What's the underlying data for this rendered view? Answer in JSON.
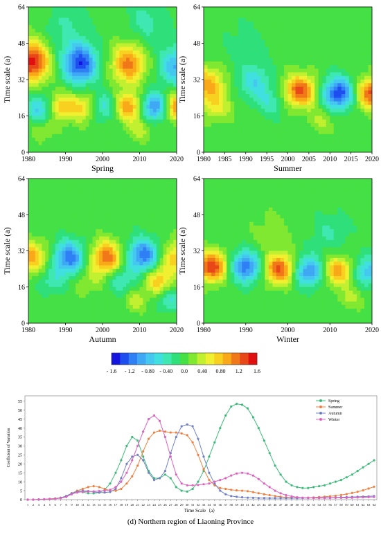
{
  "charts": {
    "panels": [
      {
        "id": "spring",
        "label": "Spring",
        "ylabel": "Time scale (a)",
        "xticks": [
          "1980",
          "1990",
          "2000",
          "2010",
          "2020"
        ],
        "yticks": [
          "0",
          "16",
          "32",
          "48",
          "64"
        ]
      },
      {
        "id": "summer",
        "label": "Summer",
        "ylabel": "Time scale (a)",
        "xticks": [
          "1980",
          "1985",
          "1990",
          "1995",
          "2000",
          "2005",
          "2010",
          "2015",
          "2020"
        ],
        "yticks": [
          "0",
          "16",
          "32",
          "48",
          "64"
        ]
      },
      {
        "id": "autumn",
        "label": "Autumn",
        "ylabel": "Time scale (a)",
        "xticks": [
          "1980",
          "1990",
          "2000",
          "2010",
          "2020"
        ],
        "yticks": [
          "0",
          "16",
          "32",
          "48",
          "64"
        ]
      },
      {
        "id": "winter",
        "label": "Winter",
        "ylabel": "Time scale (a)",
        "xticks": [
          "1980",
          "1990",
          "2000",
          "2010",
          "2020"
        ],
        "yticks": [
          "0",
          "16",
          "32",
          "48",
          "64"
        ]
      }
    ],
    "colorbar": {
      "colors": [
        "#1515e0",
        "#1f4ef0",
        "#2f7ff5",
        "#3fa8f5",
        "#45c8f0",
        "#40e0e0",
        "#3ee8b0",
        "#2fe07a",
        "#45e045",
        "#80e830",
        "#c0f030",
        "#f0f030",
        "#f8d020",
        "#f8a818",
        "#f07818",
        "#e84818",
        "#e01010"
      ],
      "ticks": [
        "- 1.6",
        "- 1.2",
        "- 0.80",
        "- 0.40",
        "0.0",
        "0.40",
        "0.80",
        "1.2",
        "1.6"
      ]
    },
    "line_chart": {
      "ylabel": "Coefficient of Variation",
      "xlabel": "Time Scale（a）",
      "yticks": [
        "0",
        "5",
        "10",
        "15",
        "20",
        "25",
        "30",
        "35",
        "40",
        "45",
        "50",
        "55"
      ]
    },
    "caption": "(d) Northern region of Liaoning Province"
  },
  "chart_data": [
    {
      "type": "heatmap",
      "title": "Spring",
      "xlabel": "Spring",
      "ylabel": "Time scale (a)",
      "xlim": [
        1980,
        2020
      ],
      "ylim": [
        0,
        64
      ],
      "blobs": [
        {
          "x": 1981,
          "y": 40,
          "v": 1.5
        },
        {
          "x": 1994,
          "y": 39,
          "v": -1.4
        },
        {
          "x": 2007,
          "y": 39,
          "v": 1.1
        },
        {
          "x": 2020,
          "y": 38,
          "v": -0.9
        },
        {
          "x": 1983,
          "y": 19,
          "v": -0.7
        },
        {
          "x": 1989,
          "y": 20,
          "v": 0.8
        },
        {
          "x": 1995,
          "y": 20,
          "v": 0.7
        },
        {
          "x": 2000,
          "y": 20,
          "v": -0.6
        },
        {
          "x": 2007,
          "y": 20,
          "v": 1.0
        },
        {
          "x": 2014,
          "y": 20,
          "v": -1.1
        },
        {
          "x": 2020,
          "y": 20,
          "v": 1.0
        },
        {
          "x": 1984,
          "y": 10,
          "v": 0.3
        },
        {
          "x": 2010,
          "y": 10,
          "v": 0.4
        },
        {
          "x": 1990,
          "y": 55,
          "v": -0.3
        },
        {
          "x": 2012,
          "y": 58,
          "v": -0.35
        }
      ]
    },
    {
      "type": "heatmap",
      "title": "Summer",
      "xlabel": "Summer",
      "ylabel": "Time scale (a)",
      "xlim": [
        1980,
        2020
      ],
      "ylim": [
        0,
        64
      ],
      "blobs": [
        {
          "x": 1981,
          "y": 30,
          "v": 0.9
        },
        {
          "x": 1992,
          "y": 31,
          "v": -0.6
        },
        {
          "x": 2003,
          "y": 27,
          "v": 1.3
        },
        {
          "x": 2012,
          "y": 26,
          "v": -1.4
        },
        {
          "x": 2020,
          "y": 26,
          "v": 1.3
        },
        {
          "x": 1983,
          "y": 20,
          "v": 0.5
        },
        {
          "x": 1996,
          "y": 22,
          "v": -0.4
        },
        {
          "x": 2008,
          "y": 14,
          "v": 0.3
        },
        {
          "x": 1990,
          "y": 48,
          "v": -0.2
        }
      ]
    },
    {
      "type": "heatmap",
      "title": "Autumn",
      "xlabel": "Autumn",
      "ylabel": "Time scale (a)",
      "xlim": [
        1980,
        2020
      ],
      "ylim": [
        0,
        64
      ],
      "blobs": [
        {
          "x": 1981,
          "y": 29,
          "v": 0.9
        },
        {
          "x": 1991,
          "y": 29,
          "v": -1.2
        },
        {
          "x": 2001,
          "y": 29,
          "v": 1.2
        },
        {
          "x": 2011,
          "y": 30,
          "v": -1.2
        },
        {
          "x": 2020,
          "y": 29,
          "v": 0.8
        },
        {
          "x": 1986,
          "y": 19,
          "v": -0.4
        },
        {
          "x": 1996,
          "y": 19,
          "v": 0.3
        },
        {
          "x": 2005,
          "y": 19,
          "v": -0.5
        },
        {
          "x": 2015,
          "y": 19,
          "v": 0.8
        },
        {
          "x": 2018,
          "y": 10,
          "v": -0.5
        },
        {
          "x": 2009,
          "y": 10,
          "v": 0.4
        }
      ]
    },
    {
      "type": "heatmap",
      "title": "Winter",
      "xlabel": "Winter",
      "ylabel": "Time scale (a)",
      "xlim": [
        1980,
        2020
      ],
      "ylim": [
        0,
        64
      ],
      "blobs": [
        {
          "x": 1982,
          "y": 25,
          "v": 1.4
        },
        {
          "x": 1990,
          "y": 25,
          "v": -1.2
        },
        {
          "x": 1998,
          "y": 24,
          "v": 1.3
        },
        {
          "x": 2005,
          "y": 23,
          "v": -1.1
        },
        {
          "x": 2012,
          "y": 23,
          "v": 1.0
        },
        {
          "x": 2019,
          "y": 23,
          "v": -0.8
        },
        {
          "x": 2010,
          "y": 40,
          "v": -0.3
        },
        {
          "x": 1996,
          "y": 40,
          "v": 0.2
        },
        {
          "x": 2015,
          "y": 11,
          "v": 0.3
        }
      ]
    },
    {
      "type": "line",
      "xlabel": "Time Scale（a）",
      "ylabel": "Coefficient of Variation",
      "ylim": [
        0,
        58
      ],
      "xlim": [
        1,
        64
      ],
      "legend": "top-right",
      "x": [
        1,
        2,
        3,
        4,
        5,
        6,
        7,
        8,
        9,
        10,
        11,
        12,
        13,
        14,
        15,
        16,
        17,
        18,
        19,
        20,
        21,
        22,
        23,
        24,
        25,
        26,
        27,
        28,
        29,
        30,
        31,
        32,
        33,
        34,
        35,
        36,
        37,
        38,
        39,
        40,
        41,
        42,
        43,
        44,
        45,
        46,
        47,
        48,
        49,
        50,
        51,
        52,
        53,
        54,
        55,
        56,
        57,
        58,
        59,
        60,
        61,
        62,
        63,
        64
      ],
      "series": [
        {
          "name": "Spring",
          "color": "#3dbb7a",
          "values": [
            0,
            0,
            0.1,
            0.2,
            0.4,
            0.6,
            1,
            2,
            3.5,
            4.5,
            4.2,
            3.6,
            3.5,
            4,
            5.5,
            9,
            15,
            22,
            30,
            35,
            33,
            24,
            16,
            12,
            12,
            14,
            12,
            7,
            5,
            4.5,
            6,
            10,
            16,
            24,
            32,
            40,
            47,
            52,
            53.5,
            53,
            51,
            46,
            40,
            33,
            26,
            19,
            14,
            10,
            8,
            7,
            6.5,
            6.5,
            7,
            7.5,
            8,
            9,
            10,
            11,
            12.5,
            14,
            16,
            18,
            20,
            22
          ]
        },
        {
          "name": "Summer",
          "color": "#f08040",
          "values": [
            0,
            0,
            0.1,
            0.2,
            0.4,
            0.6,
            1,
            2,
            3.5,
            5,
            6,
            7,
            7.5,
            7,
            6,
            5,
            5,
            6,
            9,
            13,
            19,
            27,
            34,
            37.5,
            38.5,
            38,
            37.5,
            37.5,
            37,
            36,
            32,
            25,
            17,
            11,
            8,
            6.5,
            6,
            5.5,
            5.2,
            5,
            4.7,
            4.2,
            3.6,
            3,
            2.5,
            2,
            1.6,
            1.3,
            1.1,
            1,
            1,
            1.1,
            1.2,
            1.4,
            1.6,
            1.9,
            2.2,
            2.6,
            3.1,
            3.7,
            4.4,
            5.2,
            6.2,
            7.2
          ]
        },
        {
          "name": "Autumn",
          "color": "#7080c8",
          "values": [
            0,
            0,
            0.1,
            0.2,
            0.3,
            0.5,
            1,
            2,
            3.5,
            4.5,
            5,
            4.8,
            4.3,
            4,
            4,
            4.3,
            6,
            12,
            20,
            24,
            25,
            22,
            15,
            11,
            12,
            16,
            26,
            35,
            41,
            42,
            41,
            34,
            24,
            15,
            9,
            5,
            3,
            2,
            1.6,
            1.3,
            1.1,
            1,
            0.9,
            0.9,
            0.8,
            0.8,
            0.8,
            0.8,
            0.8,
            0.8,
            0.9,
            0.9,
            1,
            1,
            1.1,
            1.1,
            1.2,
            1.3,
            1.4,
            1.5,
            1.6,
            1.7,
            1.8,
            2
          ]
        },
        {
          "name": "Winter",
          "color": "#e060c0",
          "values": [
            0,
            0,
            0.1,
            0.2,
            0.3,
            0.5,
            0.8,
            1.5,
            3,
            4,
            4.5,
            4.5,
            4.6,
            4.8,
            5,
            5.5,
            7,
            10,
            15,
            22,
            30,
            38,
            45,
            47,
            44,
            35,
            24,
            14,
            9,
            8,
            8,
            8.2,
            8.6,
            9,
            10,
            11,
            12,
            13.5,
            14.6,
            15,
            14.6,
            13.5,
            11.5,
            9,
            7,
            5,
            3.5,
            2.5,
            1.8,
            1.3,
            1.1,
            1,
            0.9,
            0.9,
            0.9,
            0.9,
            1,
            1,
            1,
            1.1,
            1.2,
            1.3,
            1.4,
            1.5
          ]
        }
      ]
    }
  ]
}
